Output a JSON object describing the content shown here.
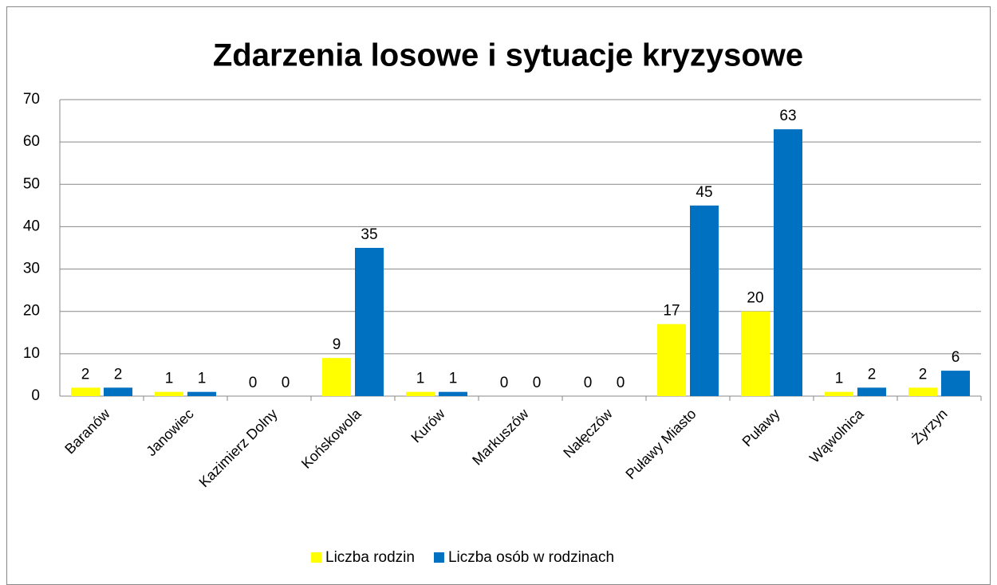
{
  "chart_data": {
    "type": "bar",
    "title": "Zdarzenia losowe i sytuacje kryzysowe",
    "categories": [
      "Baranów",
      "Janowiec",
      "Kazimierz Dolny",
      "Końskowola",
      "Kurów",
      "Markuszów",
      "Nałęczów",
      "Puławy Miasto",
      "Puławy",
      "Wąwolnica",
      "Żyrzyn"
    ],
    "series": [
      {
        "name": "Liczba rodzin",
        "color": "#ffff00",
        "values": [
          2,
          1,
          0,
          9,
          1,
          0,
          0,
          17,
          20,
          1,
          2
        ]
      },
      {
        "name": "Liczba osób w rodzinach",
        "color": "#0070c0",
        "values": [
          2,
          1,
          0,
          35,
          1,
          0,
          0,
          45,
          63,
          2,
          6
        ]
      }
    ],
    "ylim": [
      0,
      70
    ],
    "yticks": [
      0,
      10,
      20,
      30,
      40,
      50,
      60,
      70
    ],
    "grid": true,
    "legend": "bottom"
  }
}
